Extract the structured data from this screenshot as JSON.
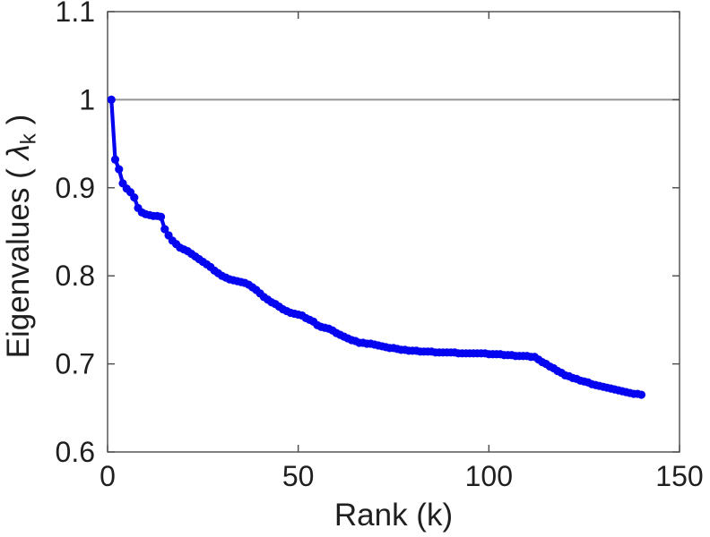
{
  "figure": {
    "background_color": "#ffffff",
    "axis_color": "#4a4a4a",
    "text_color": "#1f1f1f",
    "reference_line_color": "#949494"
  },
  "chart_data": {
    "type": "line",
    "title": "",
    "xlabel": "Rank (k)",
    "ylabel": "Eigenvalues ( λk )",
    "ylabel_parts": {
      "prefix": "Eigenvalues ( ",
      "symbol": "λ",
      "subscript": "k",
      "suffix": " )"
    },
    "xlim": [
      0,
      150
    ],
    "ylim": [
      0.6,
      1.1
    ],
    "x_ticks": [
      0,
      50,
      100,
      150
    ],
    "x_tick_labels": [
      "0",
      "50",
      "100",
      "150"
    ],
    "y_ticks": [
      0.6,
      0.7,
      0.8,
      0.9,
      1.0,
      1.1
    ],
    "y_tick_labels": [
      "0.6",
      "0.7",
      "0.8",
      "0.9",
      "1",
      "1.1"
    ],
    "grid": false,
    "legend": null,
    "reference_line_y": 1.0,
    "series": [
      {
        "name": "eigenvalues",
        "color": "#0404f0",
        "marker": "dot",
        "x_start": 1,
        "values": [
          1.0,
          0.932,
          0.921,
          0.905,
          0.899,
          0.895,
          0.889,
          0.877,
          0.872,
          0.87,
          0.869,
          0.868,
          0.868,
          0.867,
          0.853,
          0.846,
          0.84,
          0.836,
          0.832,
          0.83,
          0.828,
          0.825,
          0.822,
          0.819,
          0.816,
          0.813,
          0.81,
          0.806,
          0.803,
          0.8,
          0.798,
          0.796,
          0.795,
          0.794,
          0.793,
          0.792,
          0.79,
          0.787,
          0.784,
          0.78,
          0.776,
          0.773,
          0.77,
          0.768,
          0.765,
          0.762,
          0.76,
          0.758,
          0.757,
          0.756,
          0.755,
          0.752,
          0.75,
          0.748,
          0.744,
          0.742,
          0.741,
          0.74,
          0.738,
          0.735,
          0.733,
          0.731,
          0.729,
          0.727,
          0.726,
          0.724,
          0.724,
          0.723,
          0.723,
          0.722,
          0.721,
          0.72,
          0.719,
          0.718,
          0.718,
          0.717,
          0.716,
          0.716,
          0.715,
          0.715,
          0.715,
          0.714,
          0.714,
          0.714,
          0.714,
          0.713,
          0.713,
          0.713,
          0.713,
          0.713,
          0.713,
          0.712,
          0.712,
          0.712,
          0.712,
          0.712,
          0.712,
          0.712,
          0.712,
          0.711,
          0.711,
          0.711,
          0.711,
          0.71,
          0.71,
          0.71,
          0.709,
          0.709,
          0.709,
          0.709,
          0.708,
          0.708,
          0.705,
          0.702,
          0.7,
          0.697,
          0.695,
          0.692,
          0.69,
          0.687,
          0.686,
          0.684,
          0.683,
          0.681,
          0.68,
          0.679,
          0.677,
          0.676,
          0.675,
          0.674,
          0.673,
          0.672,
          0.671,
          0.67,
          0.669,
          0.668,
          0.667,
          0.666,
          0.666,
          0.665
        ]
      }
    ]
  }
}
